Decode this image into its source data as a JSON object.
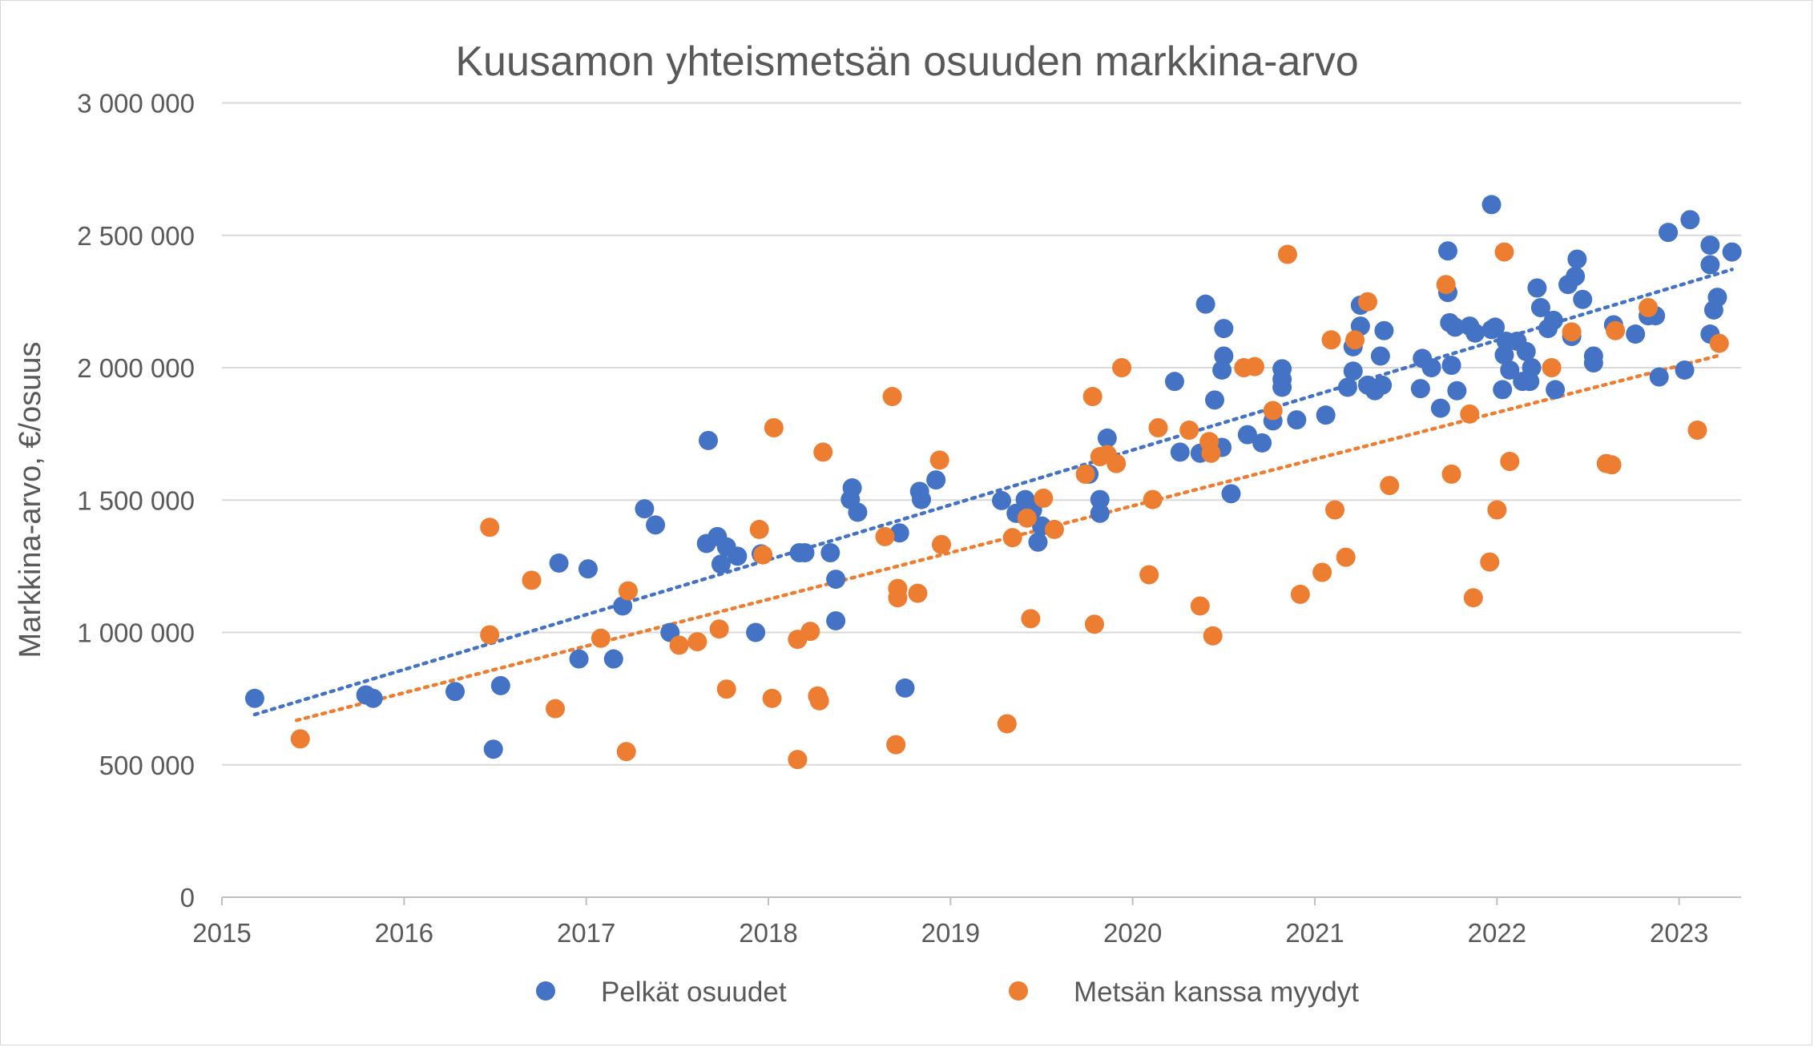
{
  "chart_data": {
    "type": "scatter",
    "title": "Kuusamon yhteismetsän osuuden markkina-arvo",
    "xlabel": "",
    "ylabel": "Markkina-arvo, €/osuus",
    "xlim": [
      2015,
      2023.34
    ],
    "ylim": [
      0,
      3000000
    ],
    "grid": true,
    "legend_position": "bottom",
    "x_ticks": [
      2015,
      2016,
      2017,
      2018,
      2019,
      2020,
      2021,
      2022,
      2023
    ],
    "x_tick_labels": [
      "2015",
      "2016",
      "2017",
      "2018",
      "2019",
      "2020",
      "2021",
      "2022",
      "2023"
    ],
    "y_ticks": [
      0,
      500000,
      1000000,
      1500000,
      2000000,
      2500000,
      3000000
    ],
    "y_tick_labels": [
      "0",
      "500 000",
      "1 000 000",
      "1 500 000",
      "2 000 000",
      "2 500 000",
      "3 000 000"
    ],
    "series": [
      {
        "name": "Pelkät osuudet",
        "color": "#4472C4",
        "trendline": {
          "type": "linear",
          "from": [
            2015.18,
            690000
          ],
          "to": [
            2023.29,
            2371000
          ]
        },
        "points": [
          [
            2015.18,
            751000
          ],
          [
            2015.79,
            764000
          ],
          [
            2015.83,
            751000
          ],
          [
            2016.28,
            777000
          ],
          [
            2016.53,
            799000
          ],
          [
            2016.49,
            559000
          ],
          [
            2016.85,
            1262000
          ],
          [
            2017.01,
            1240000
          ],
          [
            2016.96,
            900000
          ],
          [
            2017.15,
            900000
          ],
          [
            2017.2,
            1100000
          ],
          [
            2017.32,
            1467000
          ],
          [
            2017.38,
            1406000
          ],
          [
            2017.46,
            1000000
          ],
          [
            2017.67,
            1725000
          ],
          [
            2017.66,
            1336000
          ],
          [
            2017.72,
            1362000
          ],
          [
            2017.74,
            1258000
          ],
          [
            2017.77,
            1323000
          ],
          [
            2017.83,
            1288000
          ],
          [
            2017.93,
            1000000
          ],
          [
            2017.96,
            1297000
          ],
          [
            2018.17,
            1301000
          ],
          [
            2018.2,
            1301000
          ],
          [
            2018.34,
            1301000
          ],
          [
            2018.37,
            1201000
          ],
          [
            2018.37,
            1044000
          ],
          [
            2018.45,
            1502000
          ],
          [
            2018.46,
            1546000
          ],
          [
            2018.49,
            1454000
          ],
          [
            2018.72,
            1376000
          ],
          [
            2018.75,
            790000
          ],
          [
            2018.83,
            1533000
          ],
          [
            2018.84,
            1502000
          ],
          [
            2018.92,
            1576000
          ],
          [
            2019.28,
            1498000
          ],
          [
            2019.36,
            1450000
          ],
          [
            2019.41,
            1502000
          ],
          [
            2019.45,
            1463000
          ],
          [
            2019.48,
            1341000
          ],
          [
            2019.5,
            1402000
          ],
          [
            2019.76,
            1598000
          ],
          [
            2019.82,
            1502000
          ],
          [
            2019.82,
            1450000
          ],
          [
            2019.86,
            1734000
          ],
          [
            2020.23,
            1948000
          ],
          [
            2020.26,
            1681000
          ],
          [
            2020.37,
            1677000
          ],
          [
            2020.4,
            2240000
          ],
          [
            2020.45,
            1878000
          ],
          [
            2020.49,
            1699000
          ],
          [
            2020.49,
            1991000
          ],
          [
            2020.5,
            2044000
          ],
          [
            2020.5,
            2148000
          ],
          [
            2020.54,
            1524000
          ],
          [
            2020.63,
            1747000
          ],
          [
            2020.71,
            1716000
          ],
          [
            2020.77,
            1799000
          ],
          [
            2020.82,
            1996000
          ],
          [
            2020.82,
            1956000
          ],
          [
            2020.82,
            1926000
          ],
          [
            2020.9,
            1803000
          ],
          [
            2021.06,
            1821000
          ],
          [
            2021.18,
            1926000
          ],
          [
            2021.21,
            2079000
          ],
          [
            2021.21,
            1987000
          ],
          [
            2021.25,
            2236000
          ],
          [
            2021.25,
            2157000
          ],
          [
            2021.29,
            1934000
          ],
          [
            2021.33,
            1913000
          ],
          [
            2021.36,
            2044000
          ],
          [
            2021.37,
            1934000
          ],
          [
            2021.38,
            2140000
          ],
          [
            2021.58,
            1921000
          ],
          [
            2021.59,
            2035000
          ],
          [
            2021.64,
            2000000
          ],
          [
            2021.69,
            1847000
          ],
          [
            2021.73,
            2441000
          ],
          [
            2021.73,
            2284000
          ],
          [
            2021.74,
            2170000
          ],
          [
            2021.75,
            2009000
          ],
          [
            2021.77,
            2153000
          ],
          [
            2021.78,
            1913000
          ],
          [
            2021.85,
            2157000
          ],
          [
            2021.88,
            2131000
          ],
          [
            2021.97,
            2616000
          ],
          [
            2021.97,
            2144000
          ],
          [
            2021.99,
            2153000
          ],
          [
            2022.03,
            1917000
          ],
          [
            2022.04,
            2048000
          ],
          [
            2022.05,
            2100000
          ],
          [
            2022.07,
            1991000
          ],
          [
            2022.11,
            2100000
          ],
          [
            2022.14,
            1948000
          ],
          [
            2022.16,
            2061000
          ],
          [
            2022.18,
            1948000
          ],
          [
            2022.19,
            2000000
          ],
          [
            2022.22,
            2301000
          ],
          [
            2022.24,
            2227000
          ],
          [
            2022.28,
            2148000
          ],
          [
            2022.31,
            2179000
          ],
          [
            2022.32,
            1917000
          ],
          [
            2022.39,
            2314000
          ],
          [
            2022.41,
            2118000
          ],
          [
            2022.43,
            2345000
          ],
          [
            2022.44,
            2410000
          ],
          [
            2022.47,
            2258000
          ],
          [
            2022.53,
            2018000
          ],
          [
            2022.53,
            2044000
          ],
          [
            2022.64,
            2162000
          ],
          [
            2022.76,
            2127000
          ],
          [
            2022.83,
            2196000
          ],
          [
            2022.87,
            2196000
          ],
          [
            2022.89,
            1965000
          ],
          [
            2022.94,
            2511000
          ],
          [
            2023.03,
            1991000
          ],
          [
            2023.06,
            2559000
          ],
          [
            2023.17,
            2463000
          ],
          [
            2023.17,
            2389000
          ],
          [
            2023.17,
            2127000
          ],
          [
            2023.19,
            2218000
          ],
          [
            2023.21,
            2266000
          ],
          [
            2023.29,
            2437000
          ]
        ]
      },
      {
        "name": "Metsän kanssa myydyt",
        "color": "#ED7D31",
        "trendline": {
          "type": "linear",
          "from": [
            2015.41,
            668000
          ],
          "to": [
            2023.23,
            2048000
          ]
        },
        "points": [
          [
            2015.43,
            598000
          ],
          [
            2016.47,
            1397000
          ],
          [
            2016.47,
            991000
          ],
          [
            2016.7,
            1197000
          ],
          [
            2016.83,
            712000
          ],
          [
            2017.08,
            978000
          ],
          [
            2017.22,
            550000
          ],
          [
            2017.23,
            1157000
          ],
          [
            2017.51,
            952000
          ],
          [
            2017.61,
            965000
          ],
          [
            2017.73,
            1013000
          ],
          [
            2017.77,
            786000
          ],
          [
            2017.95,
            1389000
          ],
          [
            2017.97,
            1293000
          ],
          [
            2018.02,
            751000
          ],
          [
            2018.03,
            1773000
          ],
          [
            2018.16,
            974000
          ],
          [
            2018.16,
            520000
          ],
          [
            2018.23,
            1004000
          ],
          [
            2018.27,
            760000
          ],
          [
            2018.28,
            742000
          ],
          [
            2018.3,
            1681000
          ],
          [
            2018.64,
            1362000
          ],
          [
            2018.68,
            1891000
          ],
          [
            2018.7,
            576000
          ],
          [
            2018.71,
            1131000
          ],
          [
            2018.71,
            1166000
          ],
          [
            2018.82,
            1148000
          ],
          [
            2018.94,
            1651000
          ],
          [
            2018.95,
            1332000
          ],
          [
            2019.31,
            655000
          ],
          [
            2019.34,
            1358000
          ],
          [
            2019.42,
            1432000
          ],
          [
            2019.44,
            1052000
          ],
          [
            2019.51,
            1507000
          ],
          [
            2019.57,
            1389000
          ],
          [
            2019.74,
            1598000
          ],
          [
            2019.78,
            1891000
          ],
          [
            2019.79,
            1031000
          ],
          [
            2019.82,
            1664000
          ],
          [
            2019.86,
            1672000
          ],
          [
            2019.91,
            1638000
          ],
          [
            2019.94,
            2000000
          ],
          [
            2020.09,
            1218000
          ],
          [
            2020.11,
            1502000
          ],
          [
            2020.14,
            1773000
          ],
          [
            2020.31,
            1764000
          ],
          [
            2020.37,
            1100000
          ],
          [
            2020.42,
            1721000
          ],
          [
            2020.44,
            987000
          ],
          [
            2020.43,
            1677000
          ],
          [
            2020.61,
            2000000
          ],
          [
            2020.67,
            2004000
          ],
          [
            2020.77,
            1838000
          ],
          [
            2020.85,
            2428000
          ],
          [
            2020.92,
            1144000
          ],
          [
            2021.04,
            1227000
          ],
          [
            2021.09,
            2105000
          ],
          [
            2021.11,
            1463000
          ],
          [
            2021.17,
            1284000
          ],
          [
            2021.22,
            2105000
          ],
          [
            2021.29,
            2249000
          ],
          [
            2021.41,
            1555000
          ],
          [
            2021.72,
            2314000
          ],
          [
            2021.75,
            1598000
          ],
          [
            2021.85,
            1825000
          ],
          [
            2021.87,
            1131000
          ],
          [
            2021.96,
            1266000
          ],
          [
            2022.0,
            1463000
          ],
          [
            2022.04,
            2437000
          ],
          [
            2022.07,
            1646000
          ],
          [
            2022.3,
            2000000
          ],
          [
            2022.41,
            2135000
          ],
          [
            2022.6,
            1638000
          ],
          [
            2022.63,
            1633000
          ],
          [
            2022.65,
            2140000
          ],
          [
            2022.83,
            2227000
          ],
          [
            2023.1,
            1764000
          ],
          [
            2023.22,
            2092000
          ]
        ]
      }
    ]
  }
}
